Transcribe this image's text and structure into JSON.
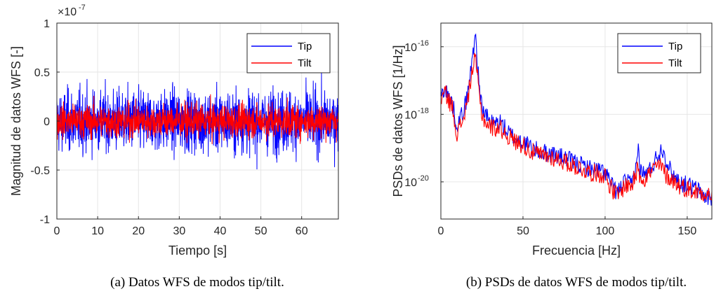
{
  "chart_data": [
    {
      "type": "line",
      "xlabel": "Tiempo [s]",
      "ylabel": "Magnitud de datos WFS [-]",
      "exponent_label": "×10",
      "exponent_power": "-7",
      "xlim": [
        0,
        69
      ],
      "ylim": [
        -1e-07,
        1e-07
      ],
      "xticks": [
        0,
        10,
        20,
        30,
        40,
        50,
        60
      ],
      "xtick_labels": [
        "0",
        "10",
        "20",
        "30",
        "40",
        "50",
        "60"
      ],
      "yticks": [
        -1e-07,
        -5e-08,
        0,
        5e-08,
        1e-07
      ],
      "ytick_labels": [
        "-1",
        "-0.5",
        "0",
        "0.5",
        "1"
      ],
      "grid": true,
      "legend": "top-right",
      "series": [
        {
          "name": "Tip",
          "color": "#0000ff",
          "amplitude_range": [
            -7.2e-08,
            6.5e-08
          ],
          "typical_std": 2.2e-08
        },
        {
          "name": "Tilt",
          "color": "#ff0000",
          "amplitude_range": [
            -3.2e-08,
            3.4e-08
          ],
          "typical_std": 1.2e-08
        }
      ],
      "caption": "(a) Datos WFS de modos tip/tilt."
    },
    {
      "type": "line",
      "xlabel": "Frecuencia [Hz]",
      "ylabel": "PSDs de datos WFS [1/Hz]",
      "xlim": [
        0,
        165
      ],
      "ylim_log10": [
        -21.1,
        -15.3
      ],
      "log_y": true,
      "xticks": [
        0,
        50,
        100,
        150
      ],
      "xtick_labels": [
        "0",
        "50",
        "100",
        "150"
      ],
      "yticks_log10": [
        -20,
        -18,
        -16
      ],
      "ytick_base": "10",
      "ytick_exponents": [
        "-20",
        "-18",
        "-16"
      ],
      "grid": true,
      "legend": "top-right",
      "series": [
        {
          "name": "Tip",
          "color": "#0000ff",
          "x": [
            0,
            2,
            4,
            7,
            10,
            13,
            16,
            18,
            20,
            21,
            22,
            23,
            25,
            28,
            32,
            36,
            40,
            45,
            50,
            55,
            60,
            70,
            80,
            90,
            100,
            105,
            108,
            112,
            116,
            119,
            120,
            121,
            124,
            128,
            132,
            135,
            137,
            140,
            145,
            150,
            155,
            160,
            165
          ],
          "log10_psd": [
            -17.5,
            -17.2,
            -17.4,
            -17.7,
            -18.3,
            -18.0,
            -17.5,
            -16.8,
            -16.0,
            -15.5,
            -16.3,
            -17.0,
            -17.8,
            -18.1,
            -18.3,
            -18.2,
            -18.5,
            -18.7,
            -18.8,
            -19.0,
            -19.1,
            -19.2,
            -19.4,
            -19.6,
            -19.7,
            -20.2,
            -20.3,
            -20.0,
            -20.1,
            -19.5,
            -18.9,
            -19.6,
            -19.8,
            -19.6,
            -19.2,
            -19.0,
            -19.3,
            -19.7,
            -20.0,
            -20.1,
            -20.2,
            -20.4,
            -20.5
          ]
        },
        {
          "name": "Tilt",
          "color": "#ff0000",
          "x": [
            0,
            2,
            4,
            7,
            10,
            13,
            16,
            18,
            20,
            21,
            22,
            23,
            25,
            28,
            32,
            36,
            40,
            45,
            50,
            55,
            60,
            70,
            80,
            90,
            100,
            105,
            108,
            112,
            116,
            119,
            120,
            121,
            124,
            128,
            132,
            135,
            137,
            140,
            145,
            150,
            155,
            160,
            165
          ],
          "log10_psd": [
            -17.7,
            -17.3,
            -17.5,
            -17.8,
            -18.6,
            -18.2,
            -17.7,
            -17.0,
            -16.5,
            -16.4,
            -16.7,
            -17.3,
            -18.0,
            -18.3,
            -18.4,
            -18.4,
            -18.6,
            -18.8,
            -18.9,
            -19.1,
            -19.2,
            -19.3,
            -19.5,
            -19.7,
            -19.8,
            -20.3,
            -20.4,
            -20.1,
            -20.1,
            -19.8,
            -19.4,
            -19.8,
            -19.9,
            -19.7,
            -19.5,
            -19.6,
            -19.8,
            -19.9,
            -20.1,
            -20.2,
            -20.3,
            -20.3,
            -20.4
          ]
        }
      ],
      "caption": "(b) PSDs de datos WFS de modos tip/tilt."
    }
  ]
}
